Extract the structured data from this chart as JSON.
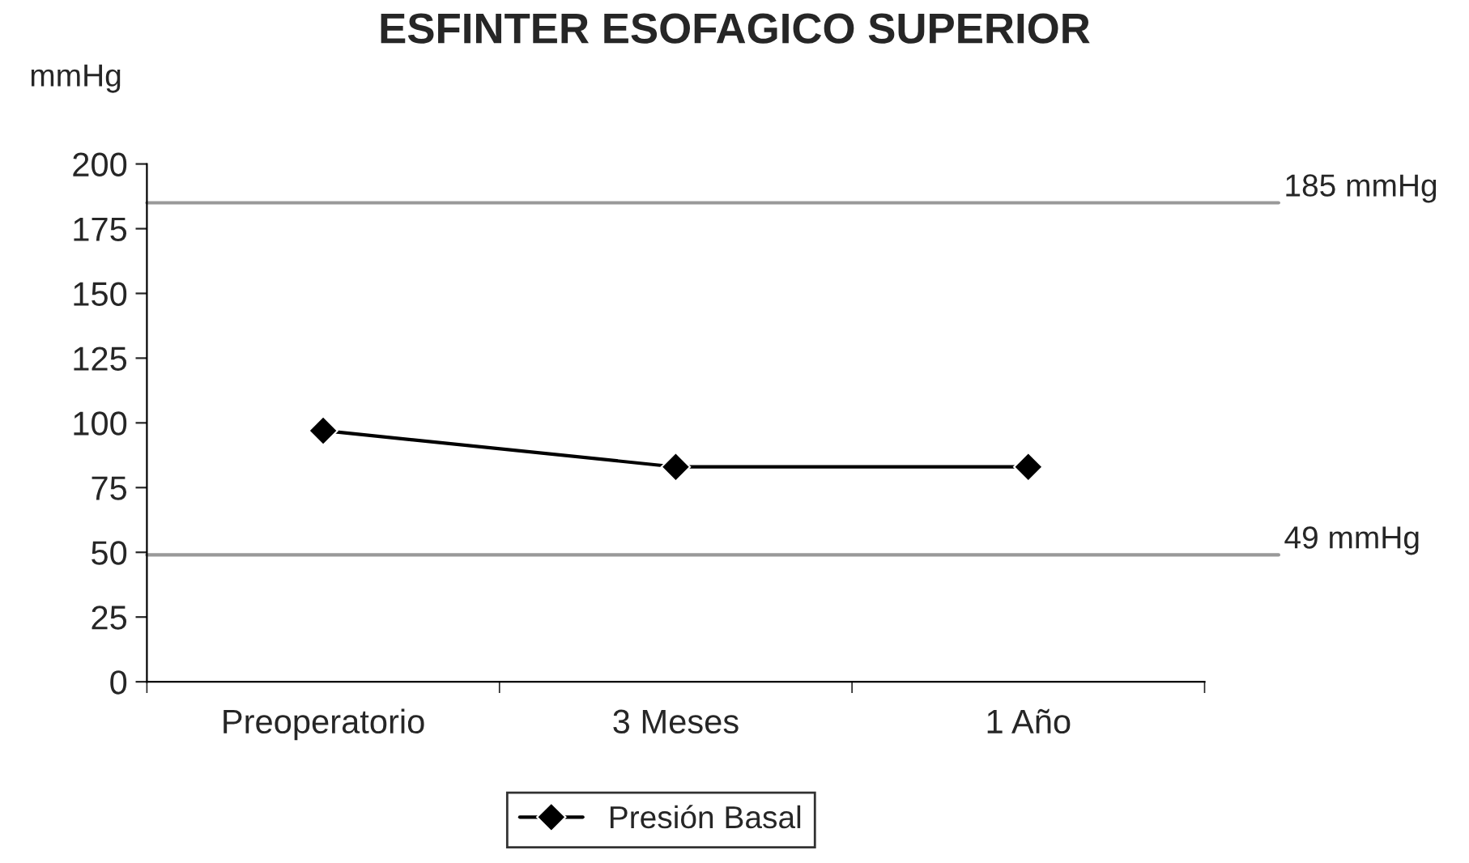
{
  "chart_data": {
    "type": "line",
    "title": "ESFINTER ESOFAGICO SUPERIOR",
    "ylabel": "mmHg",
    "categories": [
      "Preoperatorio",
      "3 Meses",
      "1 Año"
    ],
    "series": [
      {
        "name": "Presión Basal",
        "color": "#000000",
        "values": [
          97,
          83,
          83
        ]
      }
    ],
    "ylim": [
      0,
      200
    ],
    "yticks": [
      0,
      25,
      50,
      75,
      100,
      125,
      150,
      175,
      200
    ],
    "ref_lines": [
      {
        "axis": "y",
        "value": 185,
        "label": "185 mmHg",
        "color": "#999999"
      },
      {
        "axis": "y",
        "value": 49,
        "label": "49 mmHg",
        "color": "#999999"
      }
    ],
    "marker": "diamond",
    "line_style": "solid",
    "grid": false,
    "legend": "bottom"
  }
}
